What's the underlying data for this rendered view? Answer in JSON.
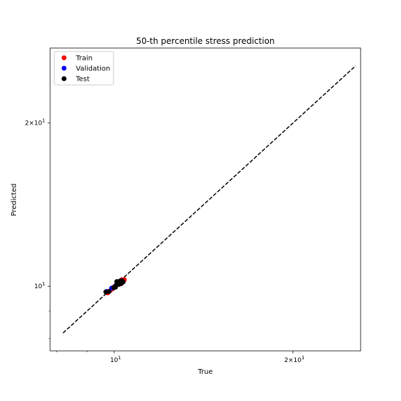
{
  "chart_data": {
    "type": "scatter",
    "title": "50-th percentile stress prediction",
    "xlabel": "True",
    "ylabel": "Predicted",
    "xscale": "log",
    "yscale": "log",
    "xlim": [
      7.8,
      26.0
    ],
    "ylim": [
      7.6,
      27.5
    ],
    "grid": false,
    "legend": "top-left",
    "x_ticks": [
      {
        "value": 10,
        "base": "10",
        "exp": "1",
        "coef": ""
      },
      {
        "value": 20,
        "base": "10",
        "exp": "1",
        "coef": "2×"
      }
    ],
    "y_ticks": [
      {
        "value": 10,
        "base": "10",
        "exp": "1",
        "coef": ""
      },
      {
        "value": 20,
        "base": "10",
        "exp": "1",
        "coef": "2×"
      }
    ],
    "identity_line": {
      "from": 8.2,
      "to": 25.5,
      "color": "#000000",
      "style": "dashed"
    },
    "series": [
      {
        "name": "Train",
        "color": "#ff0000",
        "points": [
          [
            9.75,
            9.72
          ],
          [
            9.85,
            9.82
          ],
          [
            10.0,
            9.98
          ],
          [
            10.1,
            10.06
          ],
          [
            10.2,
            10.15
          ],
          [
            10.3,
            10.28
          ],
          [
            10.35,
            10.2
          ],
          [
            10.15,
            10.1
          ],
          [
            9.95,
            9.9
          ],
          [
            10.25,
            10.1
          ],
          [
            10.4,
            10.28
          ]
        ]
      },
      {
        "name": "Validation",
        "color": "#0000ff",
        "points": [
          [
            9.7,
            9.78
          ],
          [
            9.9,
            9.92
          ],
          [
            10.05,
            10.02
          ],
          [
            10.22,
            10.18
          ]
        ]
      },
      {
        "name": "Test",
        "color": "#000000",
        "points": [
          [
            9.68,
            9.76
          ],
          [
            9.8,
            9.78
          ],
          [
            9.98,
            9.94
          ],
          [
            10.08,
            10.05
          ],
          [
            10.12,
            10.15
          ],
          [
            10.18,
            10.08
          ],
          [
            10.28,
            10.12
          ],
          [
            10.3,
            10.25
          ],
          [
            10.22,
            10.22
          ],
          [
            10.05,
            9.96
          ],
          [
            10.35,
            10.18
          ],
          [
            10.1,
            10.2
          ]
        ]
      }
    ]
  }
}
